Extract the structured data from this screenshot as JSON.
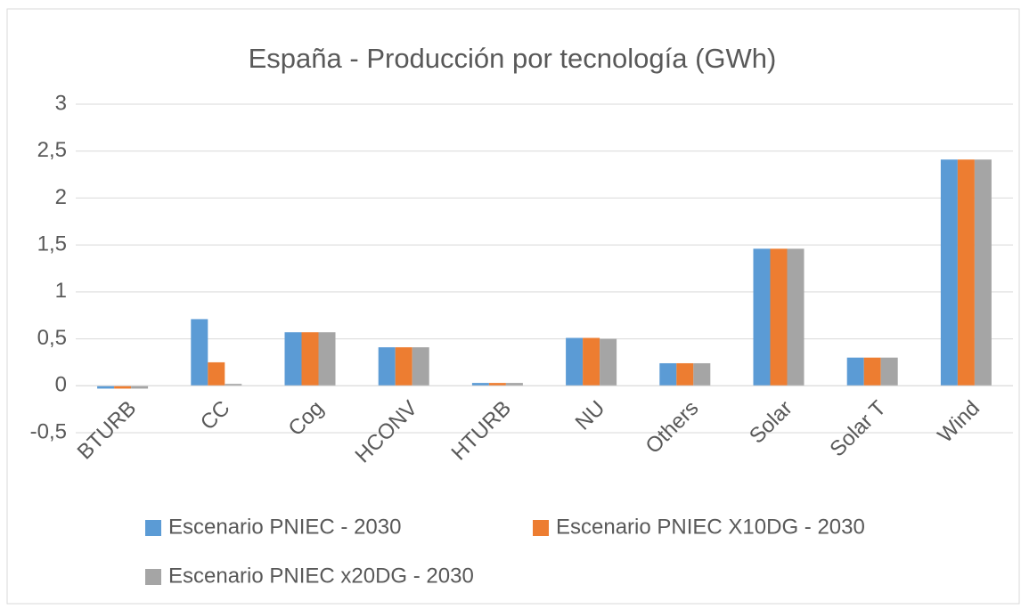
{
  "chart_data": {
    "type": "bar",
    "title": "España - Producción por tecnología (GWh)",
    "categories": [
      "BTURB",
      "CC",
      "Cog",
      "HCONV",
      "HTURB",
      "NU",
      "Others",
      "Solar",
      "Solar T",
      "Wind"
    ],
    "series": [
      {
        "name": "Escenario PNIEC - 2030",
        "color": "#5b9bd5",
        "values": [
          -0.03,
          0.71,
          0.57,
          0.41,
          0.03,
          0.51,
          0.24,
          1.46,
          0.3,
          2.41
        ]
      },
      {
        "name": "Escenario PNIEC X10DG - 2030",
        "color": "#ed7d31",
        "values": [
          -0.03,
          0.25,
          0.57,
          0.41,
          0.03,
          0.51,
          0.24,
          1.46,
          0.3,
          2.41
        ]
      },
      {
        "name": "Escenario PNIEC x20DG - 2030",
        "color": "#a5a5a5",
        "values": [
          -0.03,
          0.02,
          0.57,
          0.41,
          0.03,
          0.5,
          0.24,
          1.46,
          0.3,
          2.41
        ]
      }
    ],
    "ylim": [
      -0.5,
      3
    ],
    "yticks": [
      {
        "value": -0.5,
        "label": "-0,5"
      },
      0,
      {
        "value": 0.5,
        "label": "0,5"
      },
      1,
      {
        "value": 1.5,
        "label": "1,5"
      },
      2,
      {
        "value": 2.5,
        "label": "2,5"
      },
      3
    ],
    "grid": true
  }
}
